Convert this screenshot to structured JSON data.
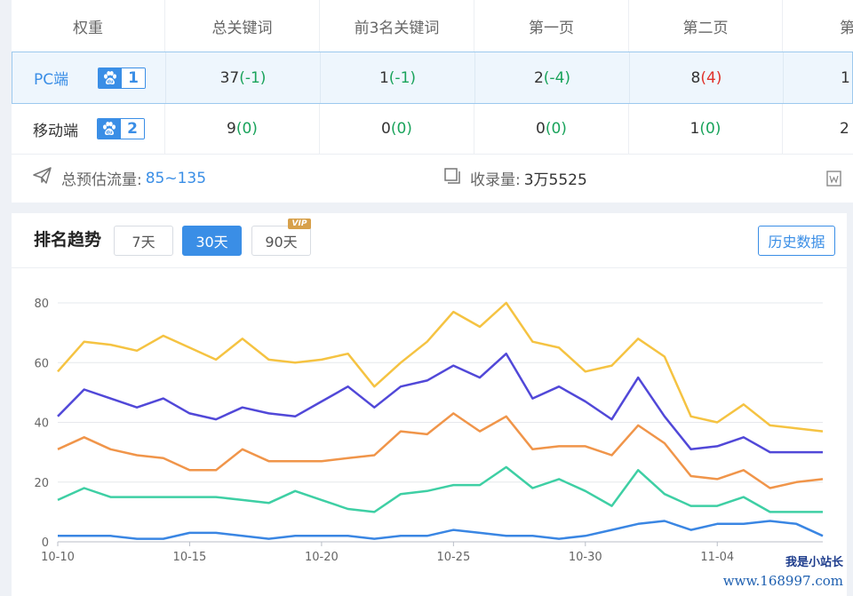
{
  "table": {
    "headers": [
      "权重",
      "总关键词",
      "前3名关键词",
      "第一页",
      "第二页",
      "第"
    ],
    "rows": [
      {
        "label": "PC端",
        "badge": "1",
        "cells": [
          {
            "value": "37",
            "delta": "(-1)",
            "sign": "neg"
          },
          {
            "value": "1",
            "delta": "(-1)",
            "sign": "neg"
          },
          {
            "value": "2",
            "delta": "(-4)",
            "sign": "neg"
          },
          {
            "value": "8",
            "delta": "(4)",
            "sign": "pos"
          },
          {
            "value": "1",
            "delta": "",
            "sign": "zero"
          }
        ]
      },
      {
        "label": "移动端",
        "badge": "2",
        "cells": [
          {
            "value": "9",
            "delta": "(0)",
            "sign": "zero"
          },
          {
            "value": "0",
            "delta": "(0)",
            "sign": "zero"
          },
          {
            "value": "0",
            "delta": "(0)",
            "sign": "zero"
          },
          {
            "value": "1",
            "delta": "(0)",
            "sign": "zero"
          },
          {
            "value": "2",
            "delta": "",
            "sign": "zero"
          }
        ]
      }
    ]
  },
  "summary": {
    "traffic_label": "总预估流量:",
    "traffic_value": "85~135",
    "index_label": "收录量:",
    "index_value": "3万5525"
  },
  "trend": {
    "title": "排名趋势",
    "ranges": [
      "7天",
      "30天",
      "90天"
    ],
    "active_range": "30天",
    "vip_label": "VIP",
    "history_button": "历史数据"
  },
  "watermark": {
    "line1": "我是小站长",
    "line2": "www.168997.com"
  },
  "colors": {
    "accent": "#3a8ee6",
    "delta_negative": "#19a35b",
    "delta_positive": "#e0322b"
  },
  "chart_data": {
    "type": "line",
    "x": [
      "10-10",
      "10-11",
      "10-12",
      "10-13",
      "10-14",
      "10-15",
      "10-16",
      "10-17",
      "10-18",
      "10-19",
      "10-20",
      "10-21",
      "10-22",
      "10-23",
      "10-24",
      "10-25",
      "10-26",
      "10-27",
      "10-28",
      "10-29",
      "10-30",
      "10-31",
      "11-01",
      "11-02",
      "11-03",
      "11-04",
      "11-05",
      "11-06",
      "11-07",
      "11-08"
    ],
    "x_tick_labels": [
      "10-10",
      "10-15",
      "10-20",
      "10-25",
      "10-30",
      "11-04"
    ],
    "ylim": [
      0,
      80
    ],
    "yticks": [
      0,
      20,
      40,
      60,
      80
    ],
    "grid": true,
    "series": [
      {
        "color": "#f5c342",
        "values": [
          57,
          67,
          66,
          64,
          69,
          65,
          61,
          68,
          61,
          60,
          61,
          63,
          52,
          60,
          67,
          77,
          72,
          80,
          67,
          65,
          57,
          59,
          68,
          62,
          42,
          40,
          46,
          39,
          38,
          37
        ]
      },
      {
        "color": "#5148d8",
        "values": [
          42,
          51,
          48,
          45,
          48,
          43,
          41,
          45,
          43,
          42,
          47,
          52,
          45,
          52,
          54,
          59,
          55,
          63,
          48,
          52,
          47,
          41,
          55,
          42,
          31,
          32,
          35,
          30,
          30,
          30
        ]
      },
      {
        "color": "#f0954a",
        "values": [
          31,
          35,
          31,
          29,
          28,
          24,
          24,
          31,
          27,
          27,
          27,
          28,
          29,
          37,
          36,
          43,
          37,
          42,
          31,
          32,
          32,
          29,
          39,
          33,
          22,
          21,
          24,
          18,
          20,
          21
        ]
      },
      {
        "color": "#3ecfa4",
        "values": [
          14,
          18,
          15,
          15,
          15,
          15,
          15,
          14,
          13,
          17,
          14,
          11,
          10,
          16,
          17,
          19,
          19,
          25,
          18,
          21,
          17,
          12,
          24,
          16,
          12,
          12,
          15,
          10,
          10,
          10
        ]
      },
      {
        "color": "#3a86e3",
        "values": [
          2,
          2,
          2,
          1,
          1,
          3,
          3,
          2,
          1,
          2,
          2,
          2,
          1,
          2,
          2,
          4,
          3,
          2,
          2,
          1,
          2,
          4,
          6,
          7,
          4,
          6,
          6,
          7,
          6,
          2
        ]
      }
    ]
  }
}
